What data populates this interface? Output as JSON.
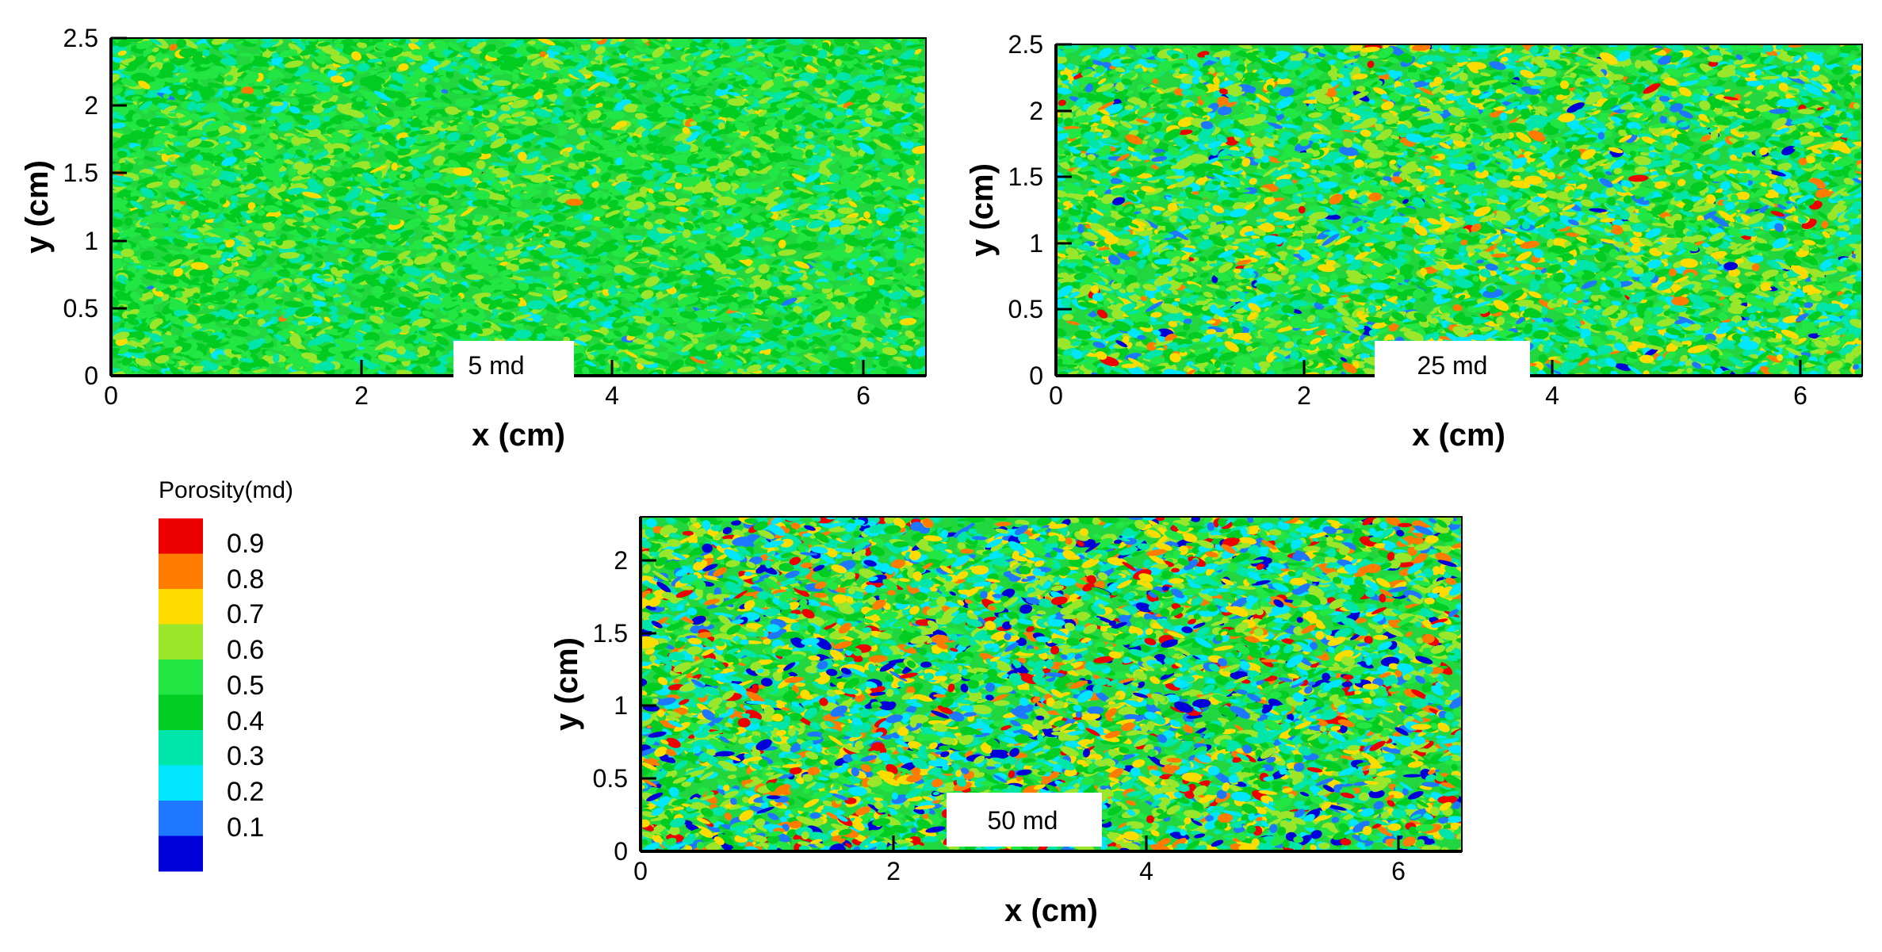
{
  "colors": {
    "levels": [
      "#0000d8",
      "#1e78ff",
      "#00e6ff",
      "#00e6aa",
      "#00cc22",
      "#22e644",
      "#9ae62a",
      "#ffdc00",
      "#ff7c00",
      "#ee0000"
    ],
    "axis": "#000000",
    "background": "#ffffff"
  },
  "legend": {
    "title": "Porosity(md)",
    "labels": [
      "0.9",
      "0.8",
      "0.7",
      "0.6",
      "0.5",
      "0.4",
      "0.3",
      "0.2",
      "0.1"
    ]
  },
  "chart_data": [
    {
      "type": "heatmap",
      "stamp": "5 md",
      "xlabel": "x (cm)",
      "ylabel": "y (cm)",
      "xlim": [
        0,
        6.5
      ],
      "ylim": [
        0,
        2.5
      ],
      "xticks": [
        "0",
        "2",
        "4",
        "6"
      ],
      "yticks": [
        "0",
        "0.5",
        "1",
        "1.5",
        "2",
        "2.5"
      ],
      "field_mean": 0.5,
      "field_spread": 0.1,
      "colorbar": "Porosity(md)"
    },
    {
      "type": "heatmap",
      "stamp": "25 md",
      "xlabel": "x (cm)",
      "ylabel": "y (cm)",
      "xlim": [
        0,
        6.5
      ],
      "ylim": [
        0,
        2.5
      ],
      "xticks": [
        "0",
        "2",
        "4",
        "6"
      ],
      "yticks": [
        "0",
        "0.5",
        "1",
        "1.5",
        "2",
        "2.5"
      ],
      "field_mean": 0.5,
      "field_spread": 0.16,
      "colorbar": "Porosity(md)"
    },
    {
      "type": "heatmap",
      "stamp": "50 md",
      "xlabel": "x (cm)",
      "ylabel": "y (cm)",
      "xlim": [
        0,
        6.5
      ],
      "ylim": [
        0,
        2.3
      ],
      "xticks": [
        "0",
        "2",
        "4",
        "6"
      ],
      "yticks": [
        "0",
        "0.5",
        "1",
        "1.5",
        "2"
      ],
      "field_mean": 0.5,
      "field_spread": 0.23,
      "colorbar": "Porosity(md)"
    }
  ]
}
